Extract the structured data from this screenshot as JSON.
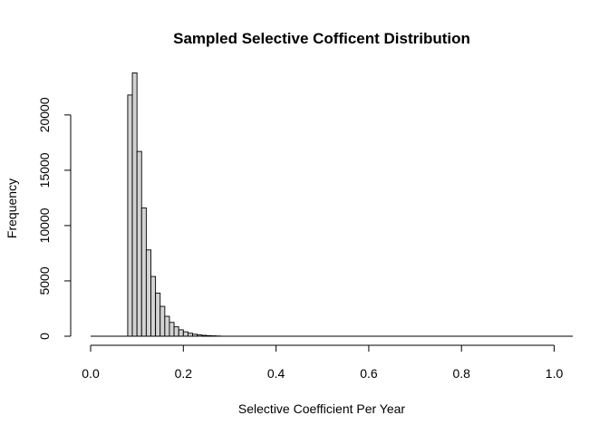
{
  "chart_data": {
    "type": "bar",
    "title": "Sampled Selective Cofficent Distribution",
    "xlabel": "Selective Coefficient Per Year",
    "ylabel": "Frequency",
    "xlim": [
      0,
      1.04
    ],
    "ylim": [
      0,
      24000
    ],
    "x_ticks": [
      0.0,
      0.2,
      0.4,
      0.6,
      0.8,
      1.0
    ],
    "x_tick_labels": [
      "0.0",
      "0.2",
      "0.4",
      "0.6",
      "0.8",
      "1.0"
    ],
    "y_ticks": [
      0,
      5000,
      10000,
      15000,
      20000
    ],
    "y_tick_labels": [
      "0",
      "5000",
      "10000",
      "15000",
      "20000"
    ],
    "bin_width": 0.01,
    "bin_start": 0.0,
    "bin_end": 1.04,
    "bins": [
      {
        "x0": 0.08,
        "count": 21800
      },
      {
        "x0": 0.09,
        "count": 23800
      },
      {
        "x0": 0.1,
        "count": 16700
      },
      {
        "x0": 0.11,
        "count": 11600
      },
      {
        "x0": 0.12,
        "count": 7800
      },
      {
        "x0": 0.13,
        "count": 5400
      },
      {
        "x0": 0.14,
        "count": 3900
      },
      {
        "x0": 0.15,
        "count": 2700
      },
      {
        "x0": 0.16,
        "count": 1800
      },
      {
        "x0": 0.17,
        "count": 1250
      },
      {
        "x0": 0.18,
        "count": 850
      },
      {
        "x0": 0.19,
        "count": 580
      },
      {
        "x0": 0.2,
        "count": 400
      },
      {
        "x0": 0.21,
        "count": 270
      },
      {
        "x0": 0.22,
        "count": 180
      },
      {
        "x0": 0.23,
        "count": 120
      },
      {
        "x0": 0.24,
        "count": 80
      },
      {
        "x0": 0.25,
        "count": 55
      },
      {
        "x0": 0.26,
        "count": 35
      },
      {
        "x0": 0.27,
        "count": 22
      }
    ],
    "grid": false,
    "bar_color": "#d3d3d3",
    "edge_color": "#000000"
  }
}
